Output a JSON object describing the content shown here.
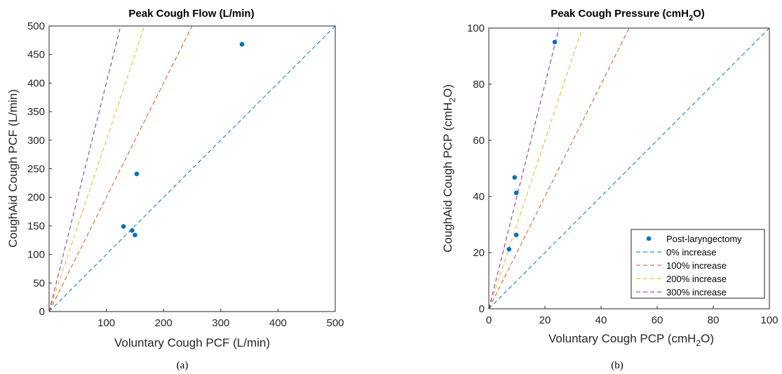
{
  "colors": {
    "points": "#0072BD",
    "line_0": "#0072BD",
    "line_100": "#D95319",
    "line_200": "#EDB120",
    "line_300": "#7E2F8E"
  },
  "chart_data": [
    {
      "type": "scatter",
      "title": "Peak Cough Flow (L/min)",
      "xlabel": "Voluntary Cough PCF (L/min)",
      "ylabel": "CoughAid Cough PCF (L/min)",
      "xlim": [
        0,
        500
      ],
      "ylim": [
        0,
        500
      ],
      "xticks": [
        100,
        200,
        300,
        400,
        500
      ],
      "yticks": [
        0,
        50,
        100,
        150,
        200,
        250,
        300,
        350,
        400,
        450,
        500
      ],
      "grid": false,
      "caption": "(a)",
      "series": [
        {
          "x": [
            130,
            145,
            150,
            153,
            337
          ],
          "y": [
            149,
            142,
            134,
            241,
            468
          ]
        }
      ],
      "reference_lines": [
        {
          "slope": 1
        },
        {
          "slope": 2
        },
        {
          "slope": 3
        },
        {
          "slope": 4
        }
      ]
    },
    {
      "type": "scatter",
      "title_main": "Peak Cough Pressure (cmH",
      "title_sub": "2",
      "title_end": "O)",
      "xlabel_main": "Voluntary Cough PCP (cmH",
      "xlabel_sub": "2",
      "xlabel_end": "O)",
      "ylabel_main": "CoughAid Cough PCP (cmH",
      "ylabel_sub": "2",
      "ylabel_end": "O)",
      "xlim": [
        0,
        100
      ],
      "ylim": [
        0,
        100
      ],
      "xticks": [
        0,
        20,
        40,
        60,
        80,
        100
      ],
      "yticks": [
        0,
        20,
        40,
        60,
        80,
        100
      ],
      "grid": false,
      "caption": "(b)",
      "legend_position": "bottom-right",
      "series": [
        {
          "name": "Post-laryngectomy",
          "x": [
            7.2,
            9.2,
            9.8,
            9.8,
            23.5
          ],
          "y": [
            21.2,
            46.8,
            41.3,
            26.3,
            95
          ]
        }
      ],
      "reference_lines": [
        {
          "name": "0% increase",
          "slope": 1
        },
        {
          "name": "100% increase",
          "slope": 2
        },
        {
          "name": "200% increase",
          "slope": 3
        },
        {
          "name": "300% increase",
          "slope": 4
        }
      ]
    }
  ]
}
